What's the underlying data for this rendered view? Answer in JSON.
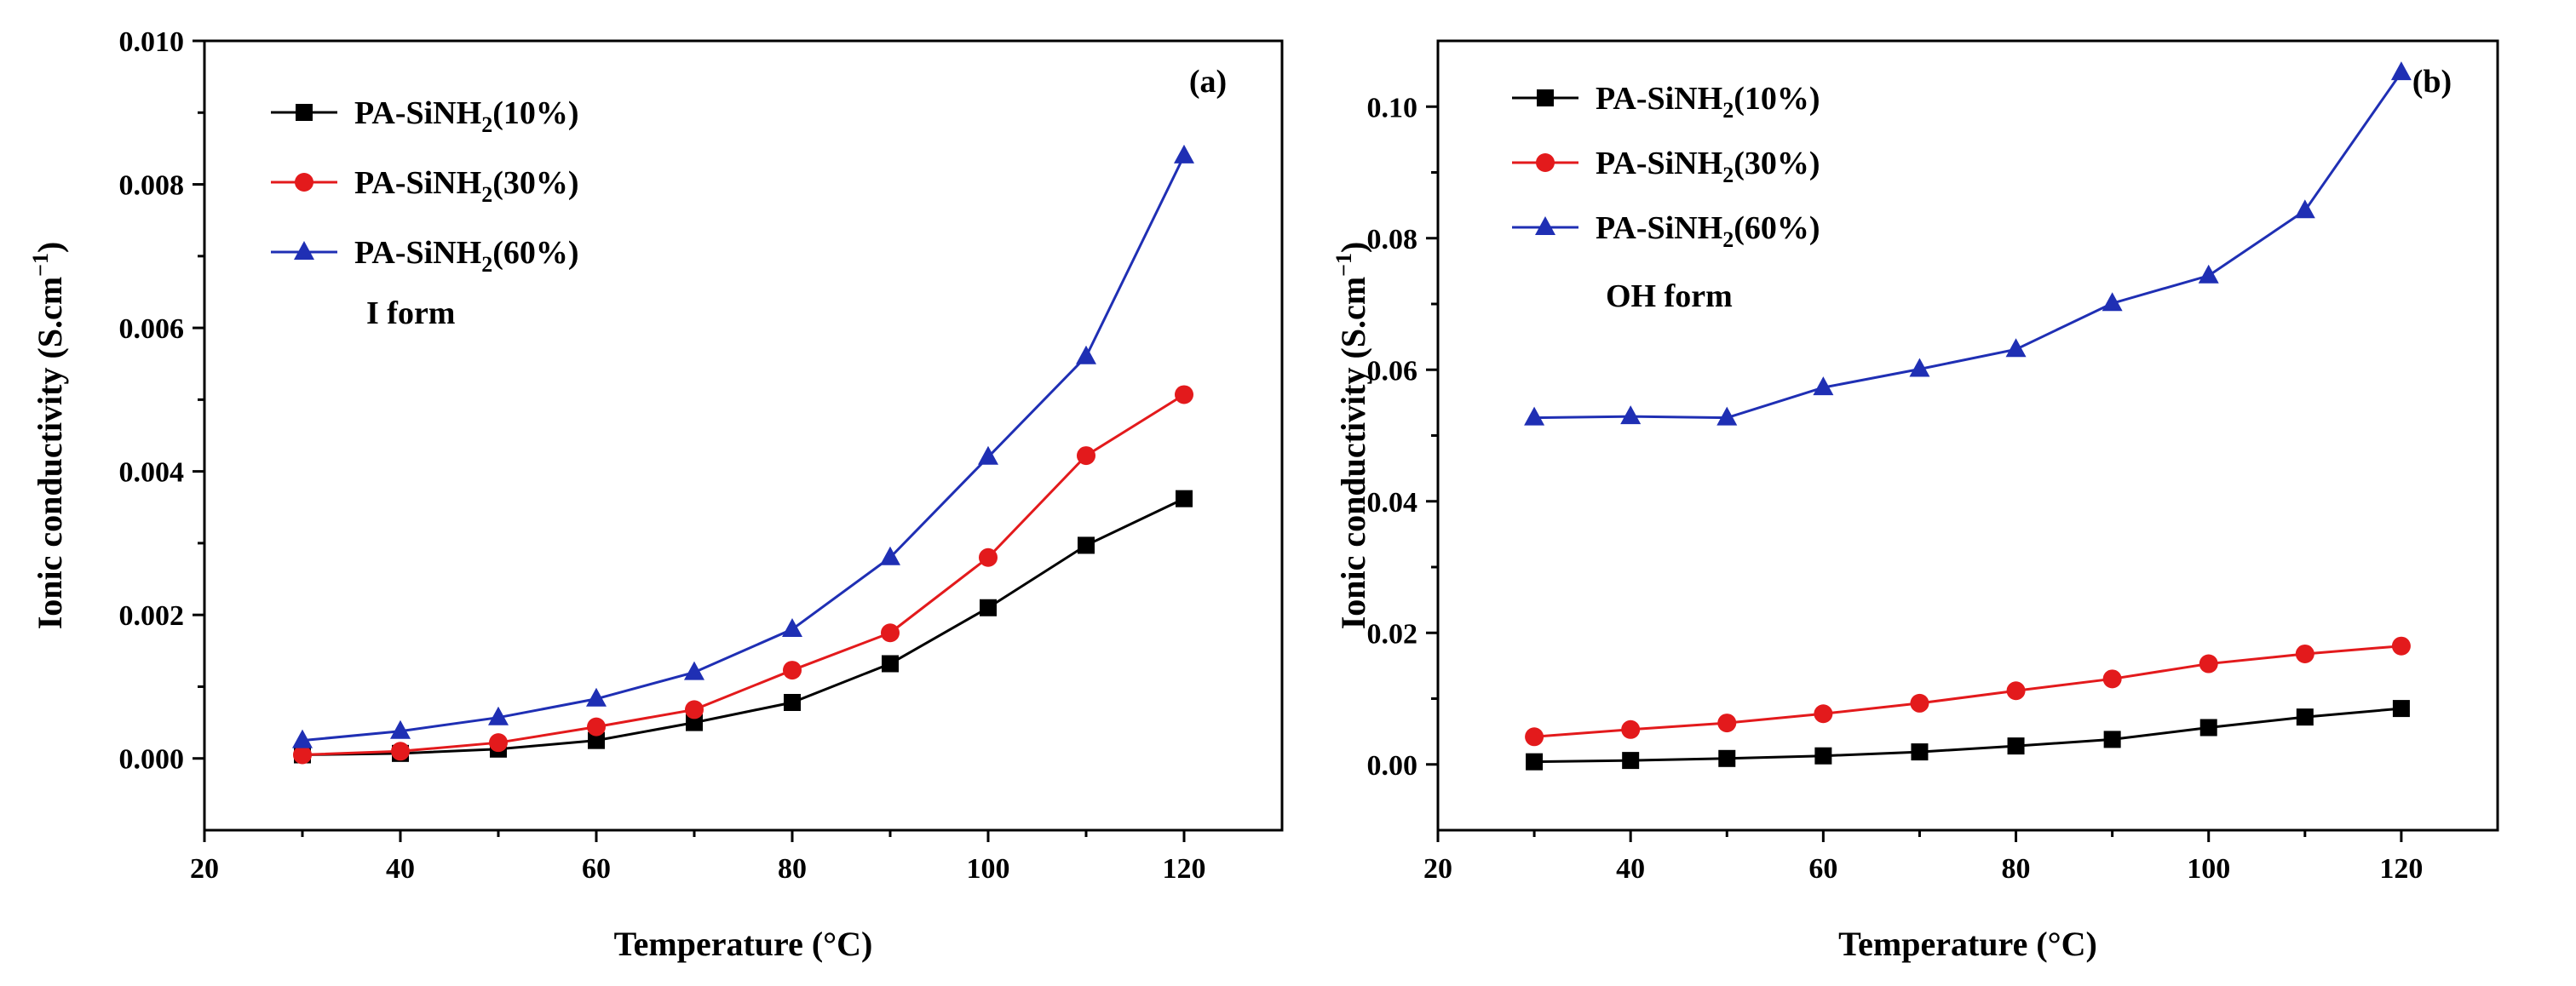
{
  "chart_data": [
    {
      "type": "line",
      "panel_label": "(a)",
      "annotation": "I form",
      "xlabel": "Temperature (°C)",
      "ylabel_main": "Ionic conductivity (S.cm",
      "ylabel_sup": "−1",
      "ylabel_close": ")",
      "xlim": [
        20,
        130
      ],
      "ylim": [
        -0.001,
        0.01
      ],
      "xticks": [
        20,
        40,
        60,
        80,
        100,
        120
      ],
      "xtick_labels": [
        "20",
        "40",
        "60",
        "80",
        "100",
        "120"
      ],
      "yticks": [
        0.0,
        0.002,
        0.004,
        0.006,
        0.008,
        0.01
      ],
      "ytick_labels": [
        "0.000",
        "0.002",
        "0.004",
        "0.006",
        "0.008",
        "0.010"
      ],
      "x": [
        30,
        40,
        50,
        60,
        70,
        80,
        90,
        100,
        110,
        120
      ],
      "series": [
        {
          "name_main": "PA-SiNH",
          "name_sub": "2",
          "name_tail": "(10%)",
          "color": "#000000",
          "marker": "square",
          "values": [
            5e-05,
            7e-05,
            0.00013,
            0.00025,
            0.0005,
            0.00078,
            0.00132,
            0.0021,
            0.00297,
            0.00362
          ]
        },
        {
          "name_main": "PA-SiNH",
          "name_sub": "2",
          "name_tail": "(30%)",
          "color": "#e31a1c",
          "marker": "circle",
          "values": [
            5e-05,
            0.0001,
            0.00022,
            0.00044,
            0.00068,
            0.00123,
            0.00175,
            0.0028,
            0.00422,
            0.00507
          ]
        },
        {
          "name_main": "PA-SiNH",
          "name_sub": "2",
          "name_tail": "(60%)",
          "color": "#1f2fb4",
          "marker": "triangle",
          "values": [
            0.00025,
            0.00038,
            0.00057,
            0.00083,
            0.0012,
            0.0018,
            0.0028,
            0.0042,
            0.0056,
            0.0084
          ]
        }
      ]
    },
    {
      "type": "line",
      "panel_label": "(b)",
      "annotation": "OH form",
      "xlabel": "Temperature (°C)",
      "ylabel_main": "Ionic conductivity (S.cm",
      "ylabel_sup": "−1",
      "ylabel_close": ")",
      "xlim": [
        20,
        130
      ],
      "ylim": [
        -0.01,
        0.11
      ],
      "xticks": [
        20,
        40,
        60,
        80,
        100,
        120
      ],
      "xtick_labels": [
        "20",
        "40",
        "60",
        "80",
        "100",
        "120"
      ],
      "yticks": [
        0.0,
        0.02,
        0.04,
        0.06,
        0.08,
        0.1
      ],
      "ytick_labels": [
        "0.00",
        "0.02",
        "0.04",
        "0.06",
        "0.08",
        "0.10"
      ],
      "x": [
        30,
        40,
        50,
        60,
        70,
        80,
        90,
        100,
        110,
        120
      ],
      "series": [
        {
          "name_main": "PA-SiNH",
          "name_sub": "2",
          "name_tail": "(10%)",
          "color": "#000000",
          "marker": "square",
          "values": [
            0.0004,
            0.0006,
            0.0009,
            0.0013,
            0.0019,
            0.0028,
            0.0038,
            0.0056,
            0.0072,
            0.0085
          ]
        },
        {
          "name_main": "PA-SiNH",
          "name_sub": "2",
          "name_tail": "(30%)",
          "color": "#e31a1c",
          "marker": "circle",
          "values": [
            0.0042,
            0.0053,
            0.0063,
            0.0077,
            0.0093,
            0.0112,
            0.013,
            0.0153,
            0.0168,
            0.018
          ]
        },
        {
          "name_main": "PA-SiNH",
          "name_sub": "2",
          "name_tail": "(60%)",
          "color": "#1f2fb4",
          "marker": "triangle",
          "values": [
            0.0527,
            0.0529,
            0.0527,
            0.0573,
            0.0601,
            0.0631,
            0.0701,
            0.0743,
            0.0842,
            0.1052
          ]
        }
      ]
    }
  ]
}
